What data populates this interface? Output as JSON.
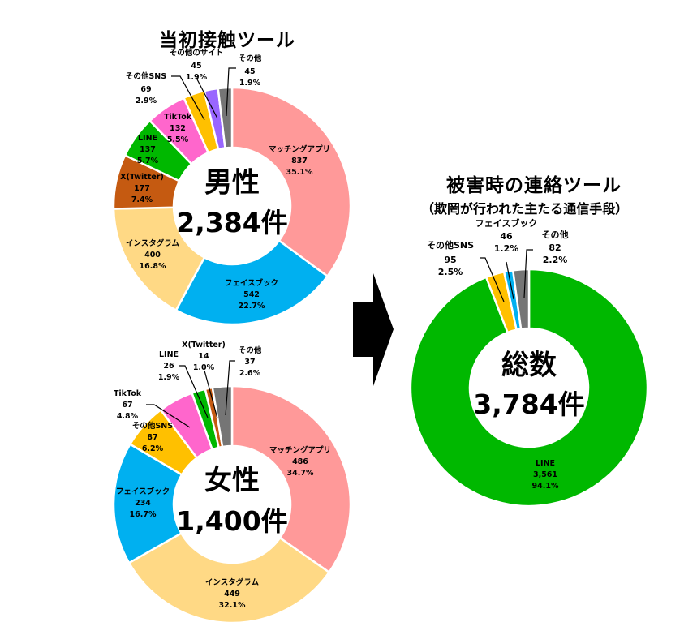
{
  "titles": {
    "left": "当初接触ツール",
    "right": "被害時の連絡ツール",
    "right_sub": "（欺罔が行われた主たる通信手段）"
  },
  "male_center": {
    "label": "男性",
    "count": "2,384件"
  },
  "female_center": {
    "label": "女性",
    "count": "1,400件"
  },
  "total_center": {
    "label": "総数",
    "count": "3,784件"
  },
  "colors": {
    "matching": "#FF9999",
    "facebook": "#00B0F0",
    "instagram": "#FFD985",
    "twitter": "#C55A11",
    "line": "#00B800",
    "tiktok": "#FF66CC",
    "other_sns": "#FFC000",
    "other_site": "#9966FF",
    "other": "#757575",
    "arrow": "#000000"
  },
  "chart_data": [
    {
      "type": "pie",
      "donut": true,
      "title": "当初接触ツール（男性）",
      "center_text": "男性 2,384件",
      "total": 2384,
      "categories": [
        "マッチングアプリ",
        "フェイスブック",
        "インスタグラム",
        "X(Twitter)",
        "LINE",
        "TikTok",
        "その他SNS",
        "その他のサイト",
        "その他"
      ],
      "values": [
        837,
        542,
        400,
        177,
        137,
        132,
        69,
        45,
        45
      ],
      "percents": [
        "35.1%",
        "22.7%",
        "16.8%",
        "7.4%",
        "5.7%",
        "5.5%",
        "2.9%",
        "1.9%",
        "1.9%"
      ],
      "value_labels": [
        "837",
        "542",
        "400",
        "177",
        "137",
        "132",
        "69",
        "45",
        "45"
      ],
      "color_keys": [
        "matching",
        "facebook",
        "instagram",
        "twitter",
        "line",
        "tiktok",
        "other_sns",
        "other_site",
        "other"
      ]
    },
    {
      "type": "pie",
      "donut": true,
      "title": "当初接触ツール（女性）",
      "center_text": "女性 1,400件",
      "total": 1400,
      "categories": [
        "マッチングアプリ",
        "インスタグラム",
        "フェイスブック",
        "その他SNS",
        "TikTok",
        "LINE",
        "X(Twitter)",
        "その他"
      ],
      "values": [
        486,
        449,
        234,
        87,
        67,
        26,
        14,
        37
      ],
      "percents": [
        "34.7%",
        "32.1%",
        "16.7%",
        "6.2%",
        "4.8%",
        "1.9%",
        "1.0%",
        "2.6%"
      ],
      "value_labels": [
        "486",
        "449",
        "234",
        "87",
        "67",
        "26",
        "14",
        "37"
      ],
      "color_keys": [
        "matching",
        "instagram",
        "facebook",
        "other_sns",
        "tiktok",
        "line",
        "twitter",
        "other"
      ]
    },
    {
      "type": "pie",
      "donut": true,
      "title": "被害時の連絡ツール（欺罔が行われた主たる通信手段）",
      "center_text": "総数 3,784件",
      "total": 3784,
      "categories": [
        "LINE",
        "その他SNS",
        "フェイスブック",
        "その他"
      ],
      "values": [
        3561,
        95,
        46,
        82
      ],
      "percents": [
        "94.1%",
        "2.5%",
        "1.2%",
        "2.2%"
      ],
      "value_labels": [
        "3,561",
        "95",
        "46",
        "82"
      ],
      "color_keys": [
        "line",
        "other_sns",
        "facebook",
        "other"
      ]
    }
  ],
  "labels": {
    "male": [
      {
        "name": "マッチングアプリ",
        "value": "837",
        "pct": "35.1%"
      },
      {
        "name": "フェイスブック",
        "value": "542",
        "pct": "22.7%"
      },
      {
        "name": "インスタグラム",
        "value": "400",
        "pct": "16.8%"
      },
      {
        "name": "X(Twitter)",
        "value": "177",
        "pct": "7.4%"
      },
      {
        "name": "LINE",
        "value": "137",
        "pct": "5.7%"
      },
      {
        "name": "TikTok",
        "value": "132",
        "pct": "5.5%"
      },
      {
        "name": "その他SNS",
        "value": "69",
        "pct": "2.9%"
      },
      {
        "name": "その他のサイト",
        "value": "45",
        "pct": "1.9%"
      },
      {
        "name": "その他",
        "value": "45",
        "pct": "1.9%"
      }
    ],
    "female": [
      {
        "name": "マッチングアプリ",
        "value": "486",
        "pct": "34.7%"
      },
      {
        "name": "インスタグラム",
        "value": "449",
        "pct": "32.1%"
      },
      {
        "name": "フェイスブック",
        "value": "234",
        "pct": "16.7%"
      },
      {
        "name": "その他SNS",
        "value": "87",
        "pct": "6.2%"
      },
      {
        "name": "TikTok",
        "value": "67",
        "pct": "4.8%"
      },
      {
        "name": "LINE",
        "value": "26",
        "pct": "1.9%"
      },
      {
        "name": "X(Twitter)",
        "value": "14",
        "pct": "1.0%"
      },
      {
        "name": "その他",
        "value": "37",
        "pct": "2.6%"
      }
    ],
    "total": [
      {
        "name": "LINE",
        "value": "3,561",
        "pct": "94.1%"
      },
      {
        "name": "その他SNS",
        "value": "95",
        "pct": "2.5%"
      },
      {
        "name": "フェイスブック",
        "value": "46",
        "pct": "1.2%"
      },
      {
        "name": "その他",
        "value": "82",
        "pct": "2.2%"
      }
    ]
  }
}
